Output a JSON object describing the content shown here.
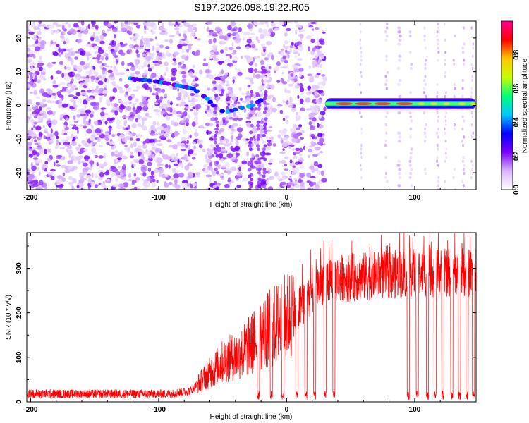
{
  "title": "S197.2026.098.19.22.R05",
  "chart_data": [
    {
      "type": "heatmap",
      "xlabel": "Height of straight line (km)",
      "ylabel": "Frequency (Hz)",
      "xlim": [
        -203,
        148
      ],
      "ylim": [
        -25,
        25
      ],
      "xticks": [
        -200,
        -100,
        0,
        100
      ],
      "yticks": [
        -20,
        -10,
        0,
        10,
        20
      ],
      "colorbar": {
        "label": "Normalized spectral amplitude",
        "range": [
          0,
          1
        ],
        "ticks": [
          "0.0",
          "0.2",
          "0.4",
          "0.6",
          "0.8"
        ],
        "colors": [
          "#ffffff",
          "#d9b6ff",
          "#7a00ff",
          "#0000ff",
          "#00c8ff",
          "#00ff7a",
          "#c8ff00",
          "#ffc800",
          "#ff0000",
          "#ff0096"
        ]
      },
      "features": {
        "scatter_region_km": [
          -203,
          30
        ],
        "band_center_hz": 0.5,
        "band_region_km": [
          30,
          148
        ],
        "band_max_amplitude": 1.0,
        "chirp_path": [
          [
            -122,
            8
          ],
          [
            -100,
            7
          ],
          [
            -73,
            5
          ],
          [
            -62,
            2
          ],
          [
            -55,
            -1
          ],
          [
            -48,
            -2
          ],
          [
            -27,
            0
          ],
          [
            -18,
            2
          ]
        ],
        "band_peaks_km": [
          45,
          60,
          75,
          92,
          105,
          115,
          125,
          137,
          146
        ]
      }
    },
    {
      "type": "line",
      "xlabel": "Height of straight line (km)",
      "ylabel": "SNR (10 * v/v)",
      "xlim": [
        -203,
        148
      ],
      "ylim": [
        0,
        380
      ],
      "xticks": [
        -200,
        -100,
        0,
        100
      ],
      "yticks": [
        0,
        100,
        200,
        300
      ],
      "series": [
        {
          "name": "SNR",
          "color": "#ff0000",
          "profile": [
            [
              -203,
              18
            ],
            [
              -150,
              18
            ],
            [
              -90,
              18
            ],
            [
              -75,
              25
            ],
            [
              -62,
              60
            ],
            [
              -50,
              90
            ],
            [
              -35,
              110
            ],
            [
              -20,
              150
            ],
            [
              -5,
              180
            ],
            [
              10,
              210
            ],
            [
              20,
              250
            ],
            [
              30,
              275
            ],
            [
              50,
              280
            ],
            [
              80,
              285
            ],
            [
              100,
              290
            ],
            [
              148,
              290
            ]
          ],
          "dropouts_km": [
            -22,
            -12,
            -3,
            8,
            15,
            22,
            30,
            37,
            95,
            102,
            110,
            116,
            122,
            129,
            135,
            141,
            146
          ]
        }
      ]
    }
  ]
}
